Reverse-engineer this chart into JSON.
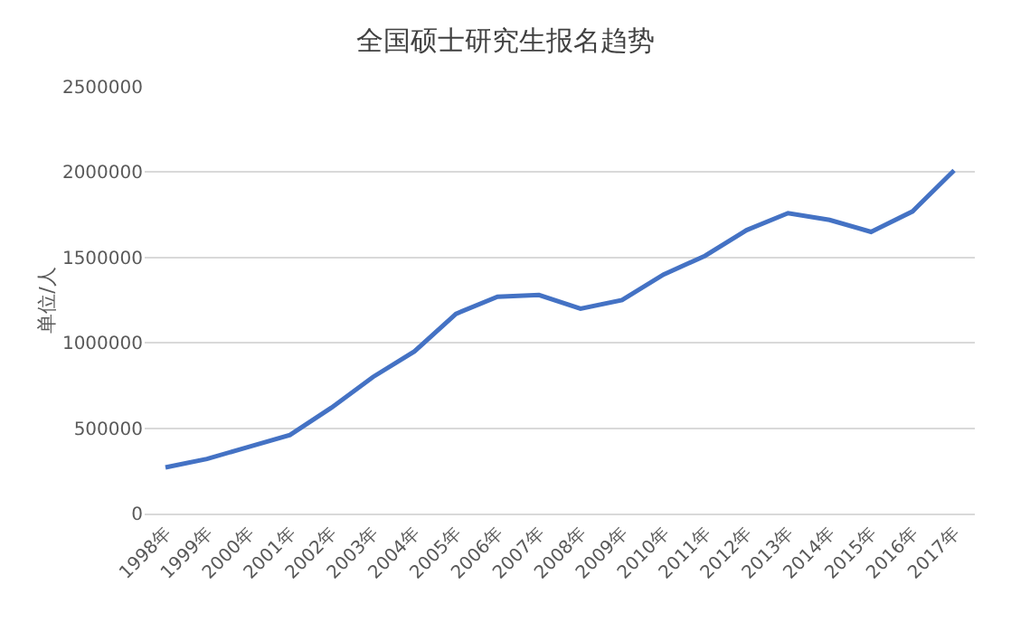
{
  "chart_data": {
    "type": "line",
    "title": "全国硕士研究生报名趋势",
    "ylabel": "单位/人",
    "categories": [
      "1998年",
      "1999年",
      "2000年",
      "2001年",
      "2002年",
      "2003年",
      "2004年",
      "2005年",
      "2006年",
      "2007年",
      "2008年",
      "2009年",
      "2010年",
      "2011年",
      "2012年",
      "2013年",
      "2014年",
      "2015年",
      "2016年",
      "2017年"
    ],
    "series": [
      {
        "color": "#4472c4",
        "values": [
          270000,
          320000,
          390000,
          460000,
          620000,
          800000,
          950000,
          1170000,
          1270000,
          1280000,
          1200000,
          1250000,
          1400000,
          1510000,
          1660000,
          1760000,
          1720000,
          1650000,
          1770000,
          2010000
        ]
      }
    ],
    "ylim": [
      0,
      2500000
    ],
    "yticks": [
      0,
      500000,
      1000000,
      1500000,
      2000000,
      2500000
    ],
    "grid": "y",
    "marker": "none",
    "line_style": "solid"
  }
}
